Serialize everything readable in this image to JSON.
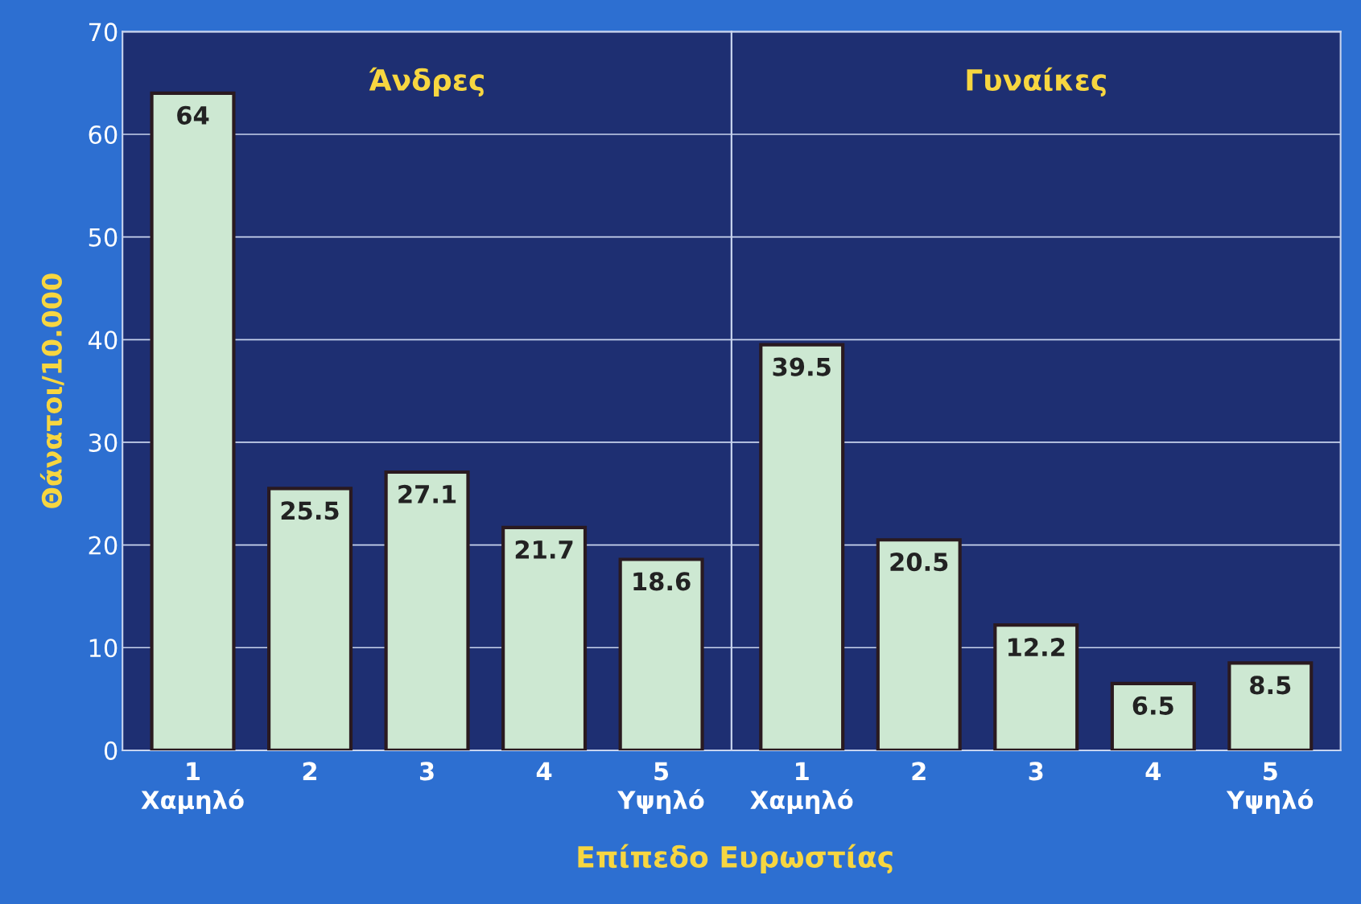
{
  "chart_data": [
    {
      "type": "bar",
      "title": "Άνδρες",
      "ylabel": "Θάνατοι/10.000",
      "xlabel": "Επίπεδο Ευρωστίας",
      "categories": [
        "1\nΧαμηλό",
        "2",
        "3",
        "4",
        "5\nΥψηλό"
      ],
      "values": [
        64,
        25.5,
        27.1,
        21.7,
        18.6
      ],
      "color": "#cde8d2",
      "ylim": [
        0,
        70
      ],
      "yticks": [
        0,
        10,
        20,
        30,
        40,
        50,
        60,
        70
      ],
      "grid": "y",
      "data_labels": true
    },
    {
      "type": "bar",
      "title": "Γυναίκες",
      "categories": [
        "1\nΧαμηλό",
        "2",
        "3",
        "4",
        "5\nΥψηλό"
      ],
      "values": [
        39.5,
        20.5,
        12.2,
        6.5,
        8.5
      ],
      "color": "#cde8d2",
      "ylim": [
        0,
        70
      ],
      "yticks": [
        0,
        10,
        20,
        30,
        40,
        50,
        60,
        70
      ],
      "grid": "y",
      "data_labels": true,
      "tick_labels": "x"
    }
  ]
}
